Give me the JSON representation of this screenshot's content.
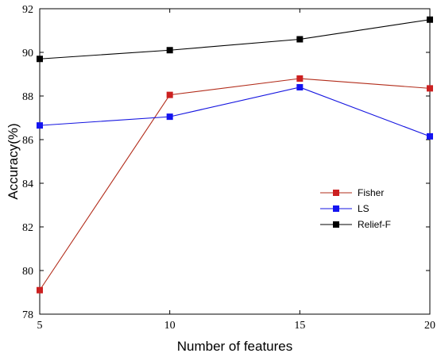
{
  "chart_data": {
    "type": "line",
    "xlabel": "Number of features",
    "ylabel": "Accuracy(%)",
    "x": [
      5,
      10,
      15,
      20
    ],
    "xlim": [
      5,
      20
    ],
    "ylim": [
      78,
      92
    ],
    "xticks": [
      5,
      10,
      15,
      20
    ],
    "yticks": [
      78,
      80,
      82,
      84,
      86,
      88,
      90,
      92
    ],
    "grid": false,
    "legend_position": "center-right",
    "series": [
      {
        "name": "Fisher",
        "values": [
          79.1,
          88.05,
          88.8,
          88.35
        ],
        "color": "#b22c1a",
        "marker_color": "#cc2020"
      },
      {
        "name": "LS",
        "values": [
          86.65,
          87.05,
          88.4,
          86.15
        ],
        "color": "#1414e0",
        "marker_color": "#1414f0"
      },
      {
        "name": "Relief-F",
        "values": [
          89.7,
          90.1,
          90.6,
          91.5
        ],
        "color": "#000000",
        "marker_color": "#000000"
      }
    ]
  }
}
